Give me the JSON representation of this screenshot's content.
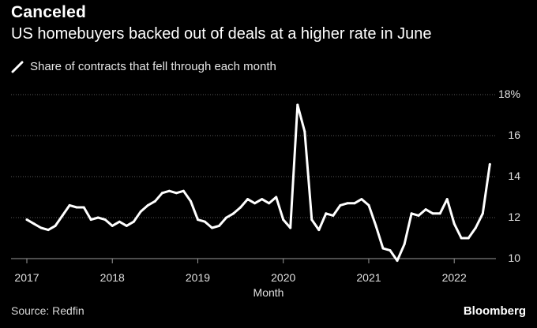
{
  "header": {
    "title": "Canceled",
    "subtitle": "US homebuyers backed out of deals at a higher rate in June"
  },
  "legend": {
    "label": "Share of contracts that fell through each month"
  },
  "footer": {
    "source": "Source: Redfin",
    "brand": "Bloomberg"
  },
  "colors": {
    "background": "#000000",
    "line": "#ffffff",
    "grid": "#5a5a5a"
  },
  "chart_data": {
    "type": "line",
    "title": "Canceled",
    "subtitle": "US homebuyers backed out of deals at a higher rate in June",
    "xlabel": "Month",
    "ylabel": "",
    "ylim": [
      10,
      18
    ],
    "yticks": [
      10,
      12,
      14,
      16,
      18
    ],
    "ytick_labels": [
      "10",
      "12",
      "14",
      "16",
      "18%"
    ],
    "xticks": [
      "2017",
      "2018",
      "2019",
      "2020",
      "2021",
      "2022"
    ],
    "grid": true,
    "legend_position": "top-left",
    "series": [
      {
        "name": "Share of contracts that fell through each month",
        "x": [
          "2017-01",
          "2017-02",
          "2017-03",
          "2017-04",
          "2017-05",
          "2017-06",
          "2017-07",
          "2017-08",
          "2017-09",
          "2017-10",
          "2017-11",
          "2017-12",
          "2018-01",
          "2018-02",
          "2018-03",
          "2018-04",
          "2018-05",
          "2018-06",
          "2018-07",
          "2018-08",
          "2018-09",
          "2018-10",
          "2018-11",
          "2018-12",
          "2019-01",
          "2019-02",
          "2019-03",
          "2019-04",
          "2019-05",
          "2019-06",
          "2019-07",
          "2019-08",
          "2019-09",
          "2019-10",
          "2019-11",
          "2019-12",
          "2020-01",
          "2020-02",
          "2020-03",
          "2020-04",
          "2020-05",
          "2020-06",
          "2020-07",
          "2020-08",
          "2020-09",
          "2020-10",
          "2020-11",
          "2020-12",
          "2021-01",
          "2021-02",
          "2021-03",
          "2021-04",
          "2021-05",
          "2021-06",
          "2021-07",
          "2021-08",
          "2021-09",
          "2021-10",
          "2021-11",
          "2021-12",
          "2022-01",
          "2022-02",
          "2022-03",
          "2022-04",
          "2022-05",
          "2022-06"
        ],
        "values": [
          11.9,
          11.7,
          11.5,
          11.4,
          11.6,
          12.1,
          12.6,
          12.5,
          12.5,
          11.9,
          12.0,
          11.9,
          11.6,
          11.8,
          11.6,
          11.8,
          12.3,
          12.6,
          12.8,
          13.2,
          13.3,
          13.2,
          13.3,
          12.8,
          11.9,
          11.8,
          11.5,
          11.6,
          12.0,
          12.2,
          12.5,
          12.9,
          12.7,
          12.9,
          12.7,
          13.0,
          11.9,
          11.5,
          17.5,
          16.2,
          11.9,
          11.4,
          12.2,
          12.1,
          12.6,
          12.7,
          12.7,
          12.9,
          12.6,
          11.6,
          10.5,
          10.4,
          9.9,
          10.7,
          12.2,
          12.1,
          12.4,
          12.2,
          12.2,
          12.9,
          11.7,
          11.0,
          11.0,
          11.5,
          12.2,
          14.6
        ]
      }
    ]
  }
}
